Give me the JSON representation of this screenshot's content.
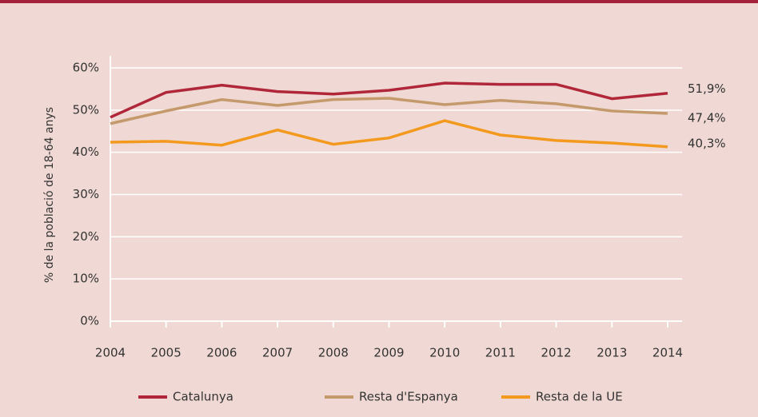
{
  "chart_data": {
    "type": "line",
    "y_axis_label": "% de la població de 18-64 anys",
    "x": [
      2004,
      2005,
      2006,
      2007,
      2008,
      2009,
      2010,
      2011,
      2012,
      2013,
      2014
    ],
    "xlim": [
      2004,
      2014
    ],
    "series": [
      {
        "name": "Catalunya",
        "color": "#b0273a",
        "values": [
          48.3,
          54.2,
          55.9,
          54.4,
          53.8,
          54.7,
          56.4,
          56.1,
          56.1,
          52.7,
          54.0
        ]
      },
      {
        "name": "Resta d'Espanya",
        "color": "#c49a6c",
        "values": [
          46.8,
          49.8,
          52.5,
          51.1,
          52.5,
          52.8,
          51.3,
          52.3,
          51.5,
          49.8,
          49.2
        ]
      },
      {
        "name": "Resta de la UE",
        "color": "#f39a1e",
        "values": [
          42.4,
          42.6,
          41.7,
          45.3,
          41.9,
          43.4,
          47.5,
          44.1,
          42.8,
          42.2,
          41.3
        ]
      }
    ],
    "annotations": [
      "51,9%",
      "47,4%",
      "40,3%"
    ],
    "ylim": [
      0,
      60
    ],
    "yticks": [
      {
        "value": 0,
        "label": "0%"
      },
      {
        "value": 10,
        "label": "10%"
      },
      {
        "value": 20,
        "label": "20%"
      },
      {
        "value": 30,
        "label": "30%"
      },
      {
        "value": 40,
        "label": "40%"
      },
      {
        "value": 50,
        "label": "50%"
      },
      {
        "value": 60,
        "label": "60%"
      }
    ],
    "grid": true
  }
}
